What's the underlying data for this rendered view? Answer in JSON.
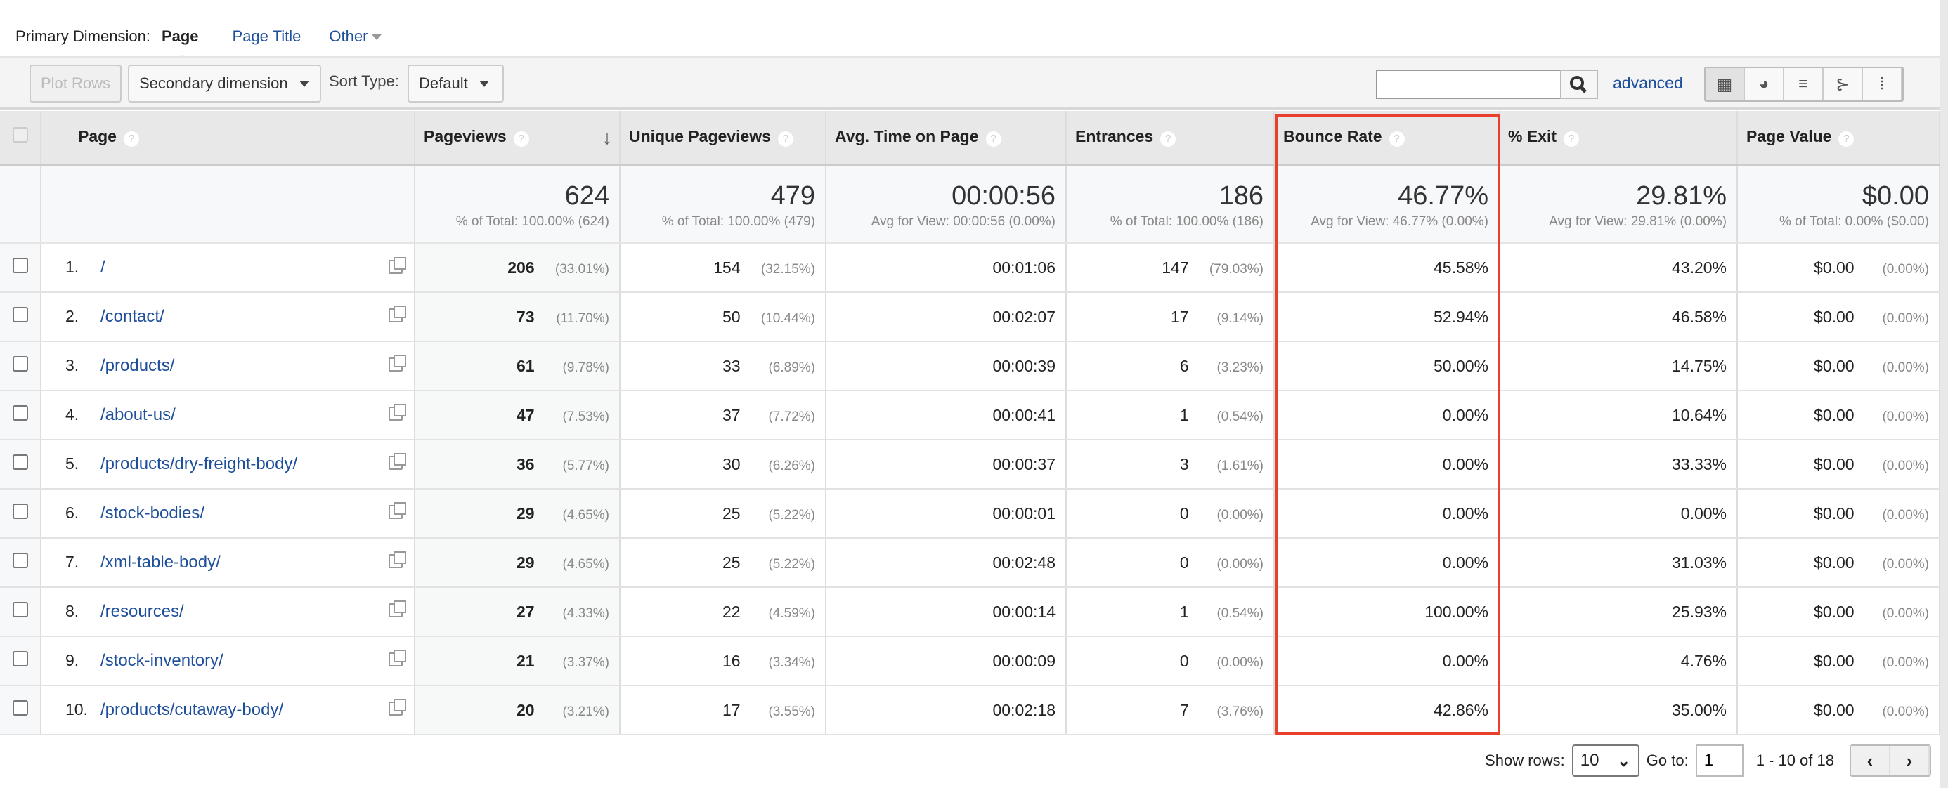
{
  "primary_dimension": {
    "label": "Primary Dimension:",
    "current": "Page",
    "options": [
      "Page Title",
      "Other"
    ]
  },
  "toolbar": {
    "plot_rows": "Plot Rows",
    "secondary_dimension": "Secondary dimension",
    "sort_type_label": "Sort Type:",
    "sort_type_value": "Default",
    "search_value": "",
    "advanced": "advanced",
    "views": [
      "table-icon",
      "pie-icon",
      "bar-icon",
      "comparison-icon",
      "pivot-icon"
    ]
  },
  "columns": [
    "Page",
    "Pageviews",
    "Unique Pageviews",
    "Avg. Time on Page",
    "Entrances",
    "Bounce Rate",
    "% Exit",
    "Page Value"
  ],
  "totals": [
    {
      "value": "624",
      "sub": "% of Total: 100.00% (624)"
    },
    {
      "value": "479",
      "sub": "% of Total: 100.00% (479)"
    },
    {
      "value": "00:00:56",
      "sub": "Avg for View: 00:00:56 (0.00%)"
    },
    {
      "value": "186",
      "sub": "% of Total: 100.00% (186)"
    },
    {
      "value": "46.77%",
      "sub": "Avg for View: 46.77% (0.00%)"
    },
    {
      "value": "29.81%",
      "sub": "Avg for View: 29.81% (0.00%)"
    },
    {
      "value": "$0.00",
      "sub": "% of Total: 0.00% ($0.00)"
    }
  ],
  "rows": [
    {
      "n": "1.",
      "page": "/",
      "pv": "206",
      "pvp": "(33.01%)",
      "upv": "154",
      "upvp": "(32.15%)",
      "time": "00:01:06",
      "ent": "147",
      "entp": "(79.03%)",
      "bounce": "45.58%",
      "exit": "43.20%",
      "val": "$0.00",
      "valp": "(0.00%)"
    },
    {
      "n": "2.",
      "page": "/contact/",
      "pv": "73",
      "pvp": "(11.70%)",
      "upv": "50",
      "upvp": "(10.44%)",
      "time": "00:02:07",
      "ent": "17",
      "entp": "(9.14%)",
      "bounce": "52.94%",
      "exit": "46.58%",
      "val": "$0.00",
      "valp": "(0.00%)"
    },
    {
      "n": "3.",
      "page": "/products/",
      "pv": "61",
      "pvp": "(9.78%)",
      "upv": "33",
      "upvp": "(6.89%)",
      "time": "00:00:39",
      "ent": "6",
      "entp": "(3.23%)",
      "bounce": "50.00%",
      "exit": "14.75%",
      "val": "$0.00",
      "valp": "(0.00%)"
    },
    {
      "n": "4.",
      "page": "/about-us/",
      "pv": "47",
      "pvp": "(7.53%)",
      "upv": "37",
      "upvp": "(7.72%)",
      "time": "00:00:41",
      "ent": "1",
      "entp": "(0.54%)",
      "bounce": "0.00%",
      "exit": "10.64%",
      "val": "$0.00",
      "valp": "(0.00%)"
    },
    {
      "n": "5.",
      "page": "/products/dry-freight-body/",
      "pv": "36",
      "pvp": "(5.77%)",
      "upv": "30",
      "upvp": "(6.26%)",
      "time": "00:00:37",
      "ent": "3",
      "entp": "(1.61%)",
      "bounce": "0.00%",
      "exit": "33.33%",
      "val": "$0.00",
      "valp": "(0.00%)"
    },
    {
      "n": "6.",
      "page": "/stock-bodies/",
      "pv": "29",
      "pvp": "(4.65%)",
      "upv": "25",
      "upvp": "(5.22%)",
      "time": "00:00:01",
      "ent": "0",
      "entp": "(0.00%)",
      "bounce": "0.00%",
      "exit": "0.00%",
      "val": "$0.00",
      "valp": "(0.00%)"
    },
    {
      "n": "7.",
      "page": "/xml-table-body/",
      "pv": "29",
      "pvp": "(4.65%)",
      "upv": "25",
      "upvp": "(5.22%)",
      "time": "00:02:48",
      "ent": "0",
      "entp": "(0.00%)",
      "bounce": "0.00%",
      "exit": "31.03%",
      "val": "$0.00",
      "valp": "(0.00%)"
    },
    {
      "n": "8.",
      "page": "/resources/",
      "pv": "27",
      "pvp": "(4.33%)",
      "upv": "22",
      "upvp": "(4.59%)",
      "time": "00:00:14",
      "ent": "1",
      "entp": "(0.54%)",
      "bounce": "100.00%",
      "exit": "25.93%",
      "val": "$0.00",
      "valp": "(0.00%)"
    },
    {
      "n": "9.",
      "page": "/stock-inventory/",
      "pv": "21",
      "pvp": "(3.37%)",
      "upv": "16",
      "upvp": "(3.34%)",
      "time": "00:00:09",
      "ent": "0",
      "entp": "(0.00%)",
      "bounce": "0.00%",
      "exit": "4.76%",
      "val": "$0.00",
      "valp": "(0.00%)"
    },
    {
      "n": "10.",
      "page": "/products/cutaway-body/",
      "pv": "20",
      "pvp": "(3.21%)",
      "upv": "17",
      "upvp": "(3.55%)",
      "time": "00:02:18",
      "ent": "7",
      "entp": "(3.76%)",
      "bounce": "42.86%",
      "exit": "35.00%",
      "val": "$0.00",
      "valp": "(0.00%)"
    }
  ],
  "footer": {
    "show_rows_label": "Show rows:",
    "show_rows_value": "10",
    "goto_label": "Go to:",
    "goto_value": "1",
    "range": "1 - 10 of 18"
  },
  "highlight_color": "#e8402a"
}
